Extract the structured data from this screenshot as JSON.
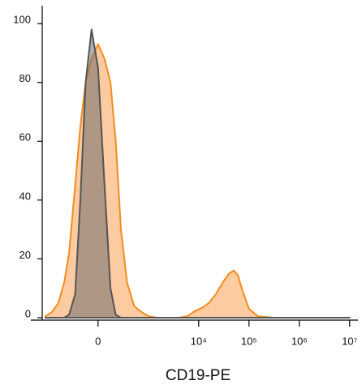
{
  "chart_data": {
    "type": "histogram-overlay",
    "x_label": "CD19-PE",
    "x_scale": "biexponential",
    "x": [
      -1100,
      -800,
      -600,
      -450,
      -350,
      -250,
      -180,
      -120,
      -60,
      0,
      60,
      120,
      180,
      250,
      350,
      500,
      700,
      1000,
      1500,
      2500,
      4000,
      6000,
      8000,
      12000,
      16000,
      22000,
      30000,
      40000,
      50000,
      60000,
      75000,
      100000,
      150000,
      300000,
      1000000,
      10000000
    ],
    "series": [
      {
        "color": "#f28c1e",
        "fill": "#fdc597",
        "values": [
          0.5,
          2,
          5,
          12,
          22,
          45,
          65,
          80,
          88,
          93,
          88,
          80,
          60,
          30,
          12,
          4,
          2,
          0.5,
          0,
          0,
          0,
          0.5,
          2,
          3.5,
          5,
          8,
          12,
          15,
          16,
          14.5,
          9,
          3,
          0.5,
          0,
          0,
          0
        ]
      },
      {
        "color": "#555555",
        "fill": "#6e6e6e",
        "values": [
          0,
          0,
          0,
          0,
          1,
          8,
          40,
          80,
          98,
          85,
          45,
          10,
          1,
          0,
          0,
          0,
          0,
          0,
          0,
          0,
          0,
          0,
          0,
          0,
          0,
          0,
          0,
          0,
          0,
          0,
          0,
          0,
          0,
          0,
          0,
          0
        ]
      }
    ],
    "xlim": [
      -1280,
      12600000
    ],
    "xticks": [
      0,
      {
        "value": 10000,
        "label": "10⁴"
      },
      {
        "value": 100000,
        "label": "10⁵"
      },
      {
        "value": 1000000,
        "label": "10⁶"
      },
      {
        "value": 10000000,
        "label": "10⁷"
      }
    ],
    "ylim": [
      0,
      105
    ],
    "yticks": [
      0,
      20,
      40,
      60,
      80,
      100
    ]
  }
}
